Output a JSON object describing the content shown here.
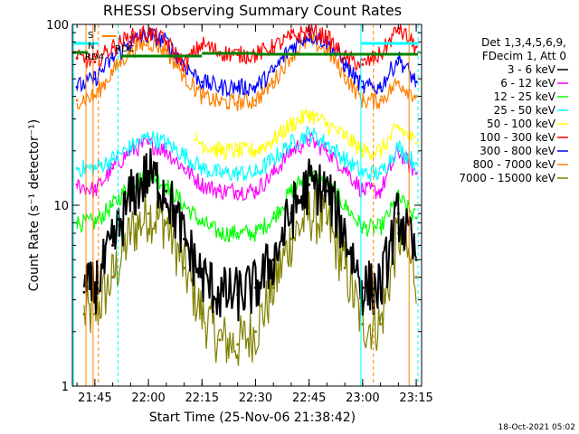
{
  "chart_data": {
    "type": "line",
    "title": "RHESSI Observing Summary Count Rates",
    "xlabel": "Start Time (25-Nov-06 21:38:42)",
    "ylabel": "Count Rate (s⁻¹ detector⁻¹)",
    "y_scale": "log",
    "ylim": [
      1,
      100
    ],
    "xlim": [
      "21:38:42",
      "23:16:30"
    ],
    "x_ticks": [
      "21:45",
      "22:00",
      "22:15",
      "22:30",
      "22:45",
      "23:00",
      "23:15"
    ],
    "y_ticks": [
      "1",
      "10",
      "100"
    ],
    "grid": false,
    "legend_position": "right",
    "legend_header": [
      "Det 1,3,4,5,6,9,",
      "FDecim 1, Att 0"
    ],
    "timestamp": "18-Oct-2021 05:02",
    "flag_labels": [
      "S",
      "N",
      "RD4",
      "RDC"
    ],
    "series": [
      {
        "name": "3 - 6 keV",
        "color": "#000000",
        "x": [
          "21:42",
          "21:45",
          "21:50",
          "21:55",
          "22:00",
          "22:05",
          "22:10",
          "22:15",
          "22:20",
          "22:25",
          "22:30",
          "22:35",
          "22:40",
          "22:45",
          "22:50",
          "22:55",
          "23:00",
          "23:05",
          "23:10",
          "23:15"
        ],
        "values": [
          3.3,
          3.5,
          6,
          11,
          15,
          12,
          6.5,
          4,
          3.2,
          3.2,
          3.5,
          5,
          9,
          13,
          12,
          7,
          3.5,
          3.5,
          9,
          5
        ]
      },
      {
        "name": "6 - 12 keV",
        "color": "#ff00ff",
        "x": [
          "21:40",
          "21:45",
          "21:50",
          "21:55",
          "22:00",
          "22:05",
          "22:10",
          "22:15",
          "22:20",
          "22:25",
          "22:30",
          "22:35",
          "22:40",
          "22:45",
          "22:50",
          "22:55",
          "23:00",
          "23:05",
          "23:10",
          "23:15"
        ],
        "values": [
          13,
          12,
          16,
          20,
          22,
          20,
          16,
          13,
          12,
          12,
          12,
          15,
          20,
          23,
          20,
          16,
          12,
          12,
          20,
          15
        ]
      },
      {
        "name": "12 - 25 keV",
        "color": "#00ff00",
        "x": [
          "21:40",
          "21:45",
          "21:50",
          "21:55",
          "22:00",
          "22:05",
          "22:10",
          "22:15",
          "22:20",
          "22:25",
          "22:30",
          "22:35",
          "22:40",
          "22:45",
          "22:50",
          "22:55",
          "23:00",
          "23:05",
          "23:10",
          "23:15"
        ],
        "values": [
          8,
          8,
          10,
          13,
          15,
          13,
          10,
          8,
          7,
          7,
          7,
          8.5,
          12,
          15,
          13,
          10,
          7.5,
          7.5,
          11,
          8.5
        ]
      },
      {
        "name": "25 - 50 keV",
        "color": "#00ffff",
        "x": [
          "21:40",
          "21:45",
          "21:50",
          "21:55",
          "22:00",
          "22:05",
          "22:10",
          "22:15",
          "22:20",
          "22:25",
          "22:30",
          "22:35",
          "22:40",
          "22:45",
          "22:50",
          "22:55",
          "23:00",
          "23:05",
          "23:10",
          "23:15"
        ],
        "values": [
          16,
          16,
          18,
          21,
          24,
          22,
          19,
          16,
          15,
          15,
          15,
          18,
          22,
          25,
          22,
          18,
          15,
          15,
          21,
          17
        ]
      },
      {
        "name": "50 - 100 keV",
        "color": "#ffff00",
        "x": [
          "22:13",
          "22:15",
          "22:20",
          "22:25",
          "22:30",
          "22:35",
          "22:40",
          "22:45",
          "22:50",
          "22:55",
          "23:00",
          "23:05",
          "23:10",
          "23:15"
        ],
        "values": [
          23,
          22,
          20,
          20,
          20,
          23,
          28,
          32,
          28,
          24,
          20,
          20,
          27,
          22
        ]
      },
      {
        "name": "100 - 300 keV",
        "color": "#ff0000",
        "x": [
          "21:40",
          "21:45",
          "21:50",
          "21:55",
          "22:00",
          "22:05",
          "22:10",
          "22:15",
          "22:20",
          "22:25",
          "22:30",
          "22:35",
          "22:40",
          "22:45",
          "22:50",
          "22:55",
          "23:00",
          "23:05",
          "23:10",
          "23:15"
        ],
        "values": [
          65,
          62,
          75,
          85,
          90,
          80,
          60,
          78,
          70,
          68,
          68,
          75,
          85,
          92,
          85,
          65,
          60,
          68,
          95,
          75
        ]
      },
      {
        "name": "300 - 800 keV",
        "color": "#0000ff",
        "x": [
          "21:40",
          "21:45",
          "21:50",
          "21:55",
          "22:00",
          "22:05",
          "22:10",
          "22:15",
          "22:20",
          "22:25",
          "22:30",
          "22:35",
          "22:40",
          "22:45",
          "22:50",
          "22:55",
          "23:00",
          "23:05",
          "23:10",
          "23:15"
        ],
        "values": [
          45,
          50,
          65,
          80,
          88,
          80,
          60,
          48,
          45,
          45,
          45,
          55,
          75,
          88,
          80,
          60,
          45,
          45,
          65,
          48
        ]
      },
      {
        "name": "800 - 7000 keV",
        "color": "#ff8000",
        "x": [
          "21:40",
          "21:45",
          "21:50",
          "21:55",
          "22:00",
          "22:05",
          "22:10",
          "22:15",
          "22:20",
          "22:25",
          "22:30",
          "22:35",
          "22:40",
          "22:45",
          "22:50",
          "22:55",
          "23:00",
          "23:05",
          "23:10",
          "23:15"
        ],
        "values": [
          38,
          40,
          55,
          72,
          80,
          72,
          52,
          40,
          37,
          37,
          38,
          48,
          68,
          82,
          72,
          52,
          38,
          38,
          48,
          40
        ]
      },
      {
        "name": "7000 - 15000 keV",
        "color": "#808000",
        "x": [
          "21:42",
          "21:45",
          "21:50",
          "21:55",
          "22:00",
          "22:05",
          "22:10",
          "22:15",
          "22:20",
          "22:25",
          "22:30",
          "22:35",
          "22:40",
          "22:45",
          "22:50",
          "22:55",
          "23:00",
          "23:05",
          "23:10",
          "23:15"
        ],
        "values": [
          2.5,
          2.5,
          4,
          7,
          9,
          8,
          4.5,
          2.5,
          1.8,
          1.7,
          2,
          3.5,
          6.5,
          9,
          8,
          4.5,
          2.2,
          2.2,
          7,
          4
        ]
      }
    ]
  }
}
